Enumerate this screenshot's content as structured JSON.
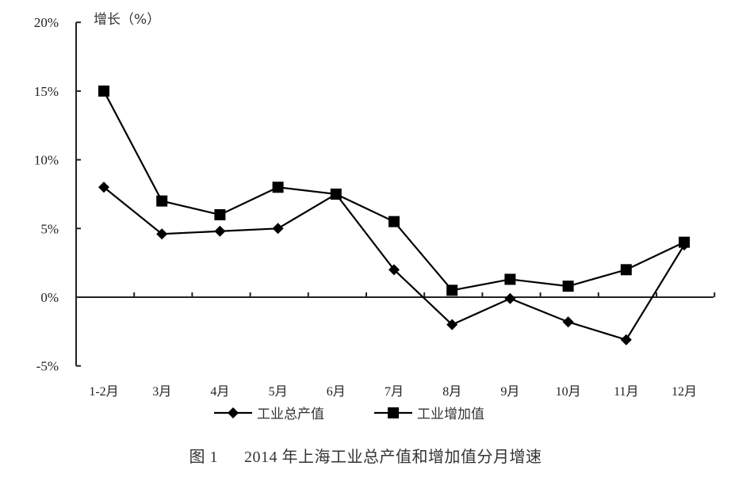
{
  "chart_data": {
    "type": "line",
    "title": "图 1     2014 年上海工业总产值和增加值分月增速",
    "caption_prefix": "图 1",
    "caption_text": "2014 年上海工业总产值和增加值分月增速",
    "xlabel": "",
    "ylabel": "增长（%）",
    "ylim": [
      -5,
      20
    ],
    "yticks": [
      -5,
      0,
      5,
      10,
      15,
      20
    ],
    "ytick_labels": [
      "-5%",
      "0%",
      "5%",
      "10%",
      "15%",
      "20%"
    ],
    "categories": [
      "1-2月",
      "3月",
      "4月",
      "5月",
      "6月",
      "7月",
      "8月",
      "9月",
      "10月",
      "11月",
      "12月"
    ],
    "grid": false,
    "legend_position": "bottom",
    "series": [
      {
        "name": "工业总产值",
        "marker": "diamond",
        "color": "#000000",
        "values": [
          8.0,
          4.6,
          4.8,
          5.0,
          7.5,
          2.0,
          -2.0,
          -0.1,
          -1.8,
          -3.1,
          3.8
        ]
      },
      {
        "name": "工业增加值",
        "marker": "square",
        "color": "#000000",
        "values": [
          15.0,
          7.0,
          6.0,
          8.0,
          7.5,
          5.5,
          0.5,
          1.3,
          0.8,
          2.0,
          4.0
        ]
      }
    ]
  }
}
